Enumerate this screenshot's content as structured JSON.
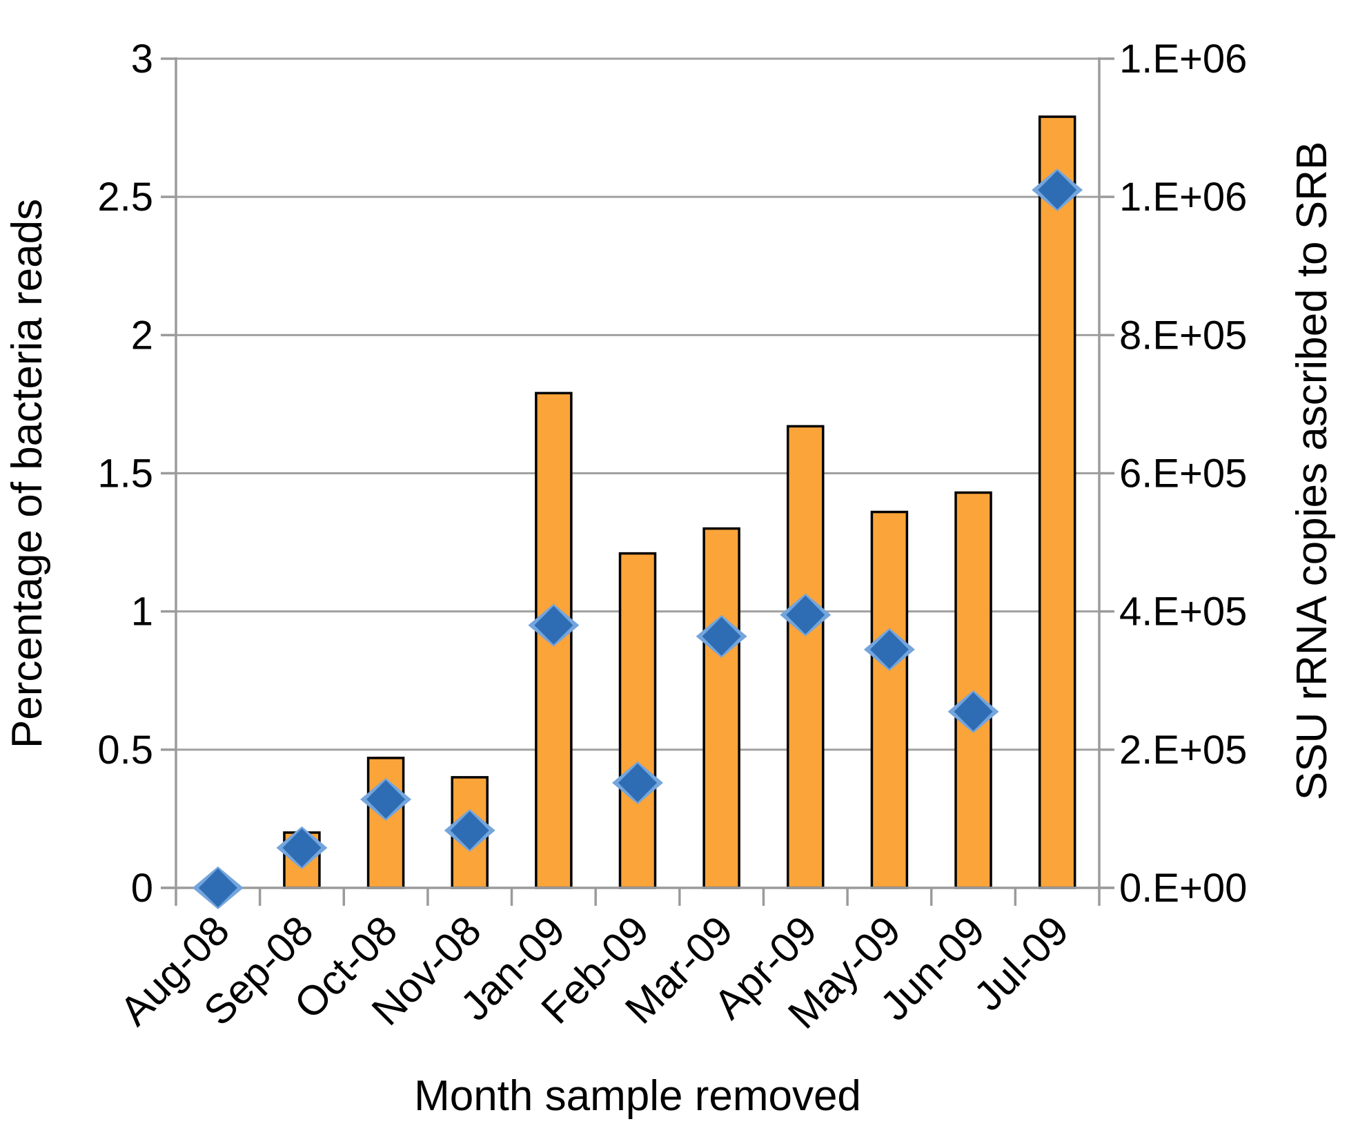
{
  "chart_data": {
    "type": "bar",
    "subtype": "bar-and-scatter-combo",
    "title": "",
    "categories": [
      "Aug-08",
      "Sep-08",
      "Oct-08",
      "Nov-08",
      "Jan-09",
      "Feb-09",
      "Mar-09",
      "Apr-09",
      "May-09",
      "Jun-09",
      "Jul-09"
    ],
    "series": [
      {
        "name": "Percentage of bacteria reads",
        "type": "bar",
        "axis": "left",
        "values": [
          0,
          0.2,
          0.47,
          0.4,
          1.79,
          1.21,
          1.3,
          1.67,
          1.36,
          1.43,
          2.79
        ]
      },
      {
        "name": "SSU rRNA copies ascribed to SRB",
        "type": "scatter",
        "marker": "diamond",
        "axis": "right",
        "values": [
          0,
          58000,
          128000,
          83000,
          380000,
          152000,
          364000,
          395000,
          345000,
          255000,
          1010000
        ]
      }
    ],
    "left_axis": {
      "title": "Percentage of bacteria reads",
      "min": 0,
      "max": 3,
      "step": 0.5,
      "tick_labels_top_to_bottom": [
        "3",
        "2.5",
        "2",
        "1.5",
        "1",
        "0.5",
        "0"
      ]
    },
    "right_axis": {
      "title": "SSU rRNA copies ascribed to SRB",
      "min": 0,
      "max": 1200000,
      "step": 200000,
      "tick_labels_top_to_bottom": [
        "1.E+06",
        "1.E+06",
        "8.E+05",
        "6.E+05",
        "4.E+05",
        "2.E+05",
        "0.E+00"
      ]
    },
    "x_axis": {
      "title": "Month sample removed",
      "label_rotation_deg": 45
    },
    "grid": true,
    "legend_position": "none",
    "colors": {
      "bar_fill": "#FAA43A",
      "bar_border": "#000000",
      "marker_dark": "#2E6DB4",
      "marker_light": "#74A5DC",
      "gridline": "#A0A0A0",
      "axis_line": "#9B9B9B",
      "text": "#000000",
      "background": "#FFFFFF"
    }
  }
}
